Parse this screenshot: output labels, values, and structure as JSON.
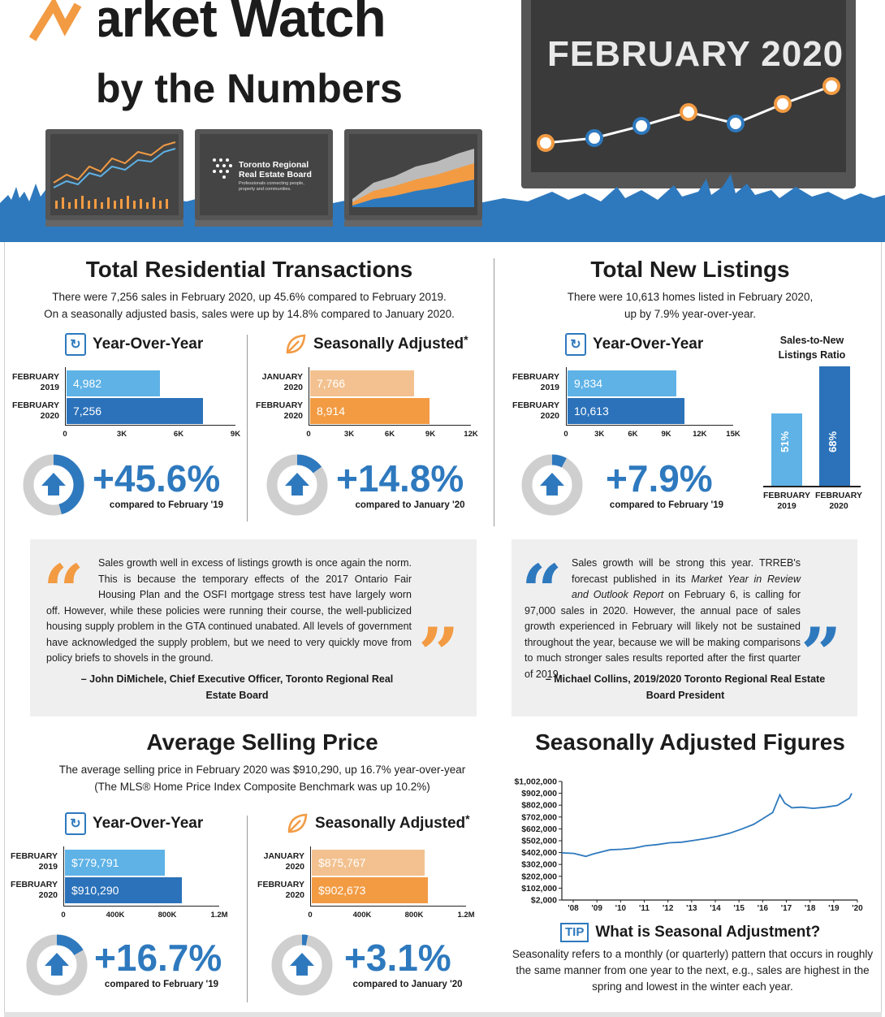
{
  "header": {
    "title_line1": "Market Watch",
    "title_line2": "by the Numbers",
    "period": "FEBRUARY 2020",
    "trreb_logo_line1": "Toronto Regional",
    "trreb_logo_line2": "Real Estate Board",
    "trreb_tagline": "Professionals connecting people, property and communities."
  },
  "transactions": {
    "title": "Total Residential Transactions",
    "summary_line1": "There were 7,256 sales in February 2020, up 45.6% compared to February 2019.",
    "summary_line2": "On a seasonally adjusted basis, sales were up by 14.8% compared to January 2020.",
    "yoy": {
      "heading": "Year-Over-Year",
      "row1_label1": "FEBRUARY",
      "row1_label2": "2019",
      "row1_value": "4,982",
      "row1_num": 4982,
      "row2_label1": "FEBRUARY",
      "row2_label2": "2020",
      "row2_value": "7,256",
      "row2_num": 7256,
      "axis_max": 9000,
      "ticks": [
        "0",
        "3K",
        "6K",
        "9K"
      ],
      "change": "+45.6%",
      "change_fraction": 0.456,
      "compare": "compared to February '19"
    },
    "sa": {
      "heading": "Seasonally Adjusted",
      "asterisk": "*",
      "row1_label1": "JANUARY",
      "row1_label2": "2020",
      "row1_value": "7,766",
      "row1_num": 7766,
      "row2_label1": "FEBRUARY",
      "row2_label2": "2020",
      "row2_value": "8,914",
      "row2_num": 8914,
      "axis_max": 12000,
      "ticks": [
        "0",
        "3K",
        "6K",
        "9K",
        "12K"
      ],
      "change": "+14.8%",
      "change_fraction": 0.148,
      "compare": "compared to January '20"
    },
    "quote": {
      "text": "Sales growth well in excess of listings growth is once again the norm. This is because the temporary effects of the 2017 Ontario Fair Housing Plan and the OSFI mortgage stress test have largely worn off. However, while these policies were running their course, the well-publicized housing supply problem in the GTA continued unabated. All levels of government have acknowledged the supply problem, but we need to very quickly move from policy briefs to shovels in the ground.",
      "author_line1": "– John DiMichele, Chief Executive Officer, Toronto Regional Real",
      "author_line2": "Estate Board"
    }
  },
  "listings": {
    "title": "Total New Listings",
    "summary_line1": "There were 10,613 homes listed in February 2020,",
    "summary_line2": "up by 7.9% year-over-year.",
    "yoy": {
      "heading": "Year-Over-Year",
      "row1_label1": "FEBRUARY",
      "row1_label2": "2019",
      "row1_value": "9,834",
      "row1_num": 9834,
      "row2_label1": "FEBRUARY",
      "row2_label2": "2020",
      "row2_value": "10,613",
      "row2_num": 10613,
      "axis_max": 15000,
      "ticks": [
        "0",
        "3K",
        "6K",
        "9K",
        "12K",
        "15K"
      ],
      "change": "+7.9%",
      "change_fraction": 0.079,
      "compare": "compared to February '19"
    },
    "ratio": {
      "heading_line1": "Sales-to-New",
      "heading_line2": "Listings Ratio",
      "bar1_value": "51%",
      "bar1_num": 51,
      "bar1_label1": "FEBRUARY",
      "bar1_label2": "2019",
      "bar2_value": "68%",
      "bar2_num": 68,
      "bar2_label1": "FEBRUARY",
      "bar2_label2": "2020"
    },
    "quote": {
      "text_before": "Sales growth will be strong this year. TRREB's forecast published in its ",
      "text_italic": "Market Year in Review and Outlook Report",
      "text_after": " on February 6, is calling for 97,000 sales in 2020. However, the annual pace of sales growth experienced in February will likely not be sustained throughout the year, because we will be making comparisons to much stronger sales results reported after the first quarter of 2019.",
      "author_line1": "– Michael Collins, 2019/2020 Toronto Regional Real Estate",
      "author_line2": "Board President"
    }
  },
  "price": {
    "title": "Average Selling Price",
    "summary_line1": "The average selling price in February 2020 was $910,290, up 16.7% year-over-year",
    "summary_line2": "(The MLS® Home Price Index Composite Benchmark was up 10.2%)",
    "yoy": {
      "heading": "Year-Over-Year",
      "row1_label1": "FEBRUARY",
      "row1_label2": "2019",
      "row1_value": "$779,791",
      "row1_num": 779791,
      "row2_label1": "FEBRUARY",
      "row2_label2": "2020",
      "row2_value": "$910,290",
      "row2_num": 910290,
      "axis_max": 1200000,
      "ticks": [
        "0",
        "400K",
        "800K",
        "1.2M"
      ],
      "change": "+16.7%",
      "change_fraction": 0.167,
      "compare": "compared to February '19"
    },
    "sa": {
      "heading": "Seasonally Adjusted",
      "asterisk": "*",
      "row1_label1": "JANUARY",
      "row1_label2": "2020",
      "row1_value": "$875,767",
      "row1_num": 875767,
      "row2_label1": "FEBRUARY",
      "row2_label2": "2020",
      "row2_value": "$902,673",
      "row2_num": 902673,
      "axis_max": 1200000,
      "ticks": [
        "0",
        "400K",
        "800K",
        "1.2M"
      ],
      "change": "+3.1%",
      "change_fraction": 0.031,
      "compare": "compared to January '20"
    }
  },
  "sa_figures": {
    "title": "Seasonally Adjusted Figures",
    "tip_badge": "TIP",
    "tip_heading": "What is Seasonal Adjustment?",
    "tip_text": "Seasonality refers to a monthly (or quarterly) pattern that occurs in roughly the same manner from one year to the next, e.g., sales are highest in the spring and lowest in the winter each year."
  },
  "chart_data": {
    "type": "line",
    "title": "",
    "xlabel": "",
    "ylabel": "",
    "x_tick_labels": [
      "'08",
      "'09",
      "'10",
      "'11",
      "'12",
      "'13",
      "'14",
      "'15",
      "'16",
      "'17",
      "'18",
      "'19",
      "'20"
    ],
    "y_tick_labels": [
      "$1,002,000",
      "$902,000",
      "$802,000",
      "$702,000",
      "$602,000",
      "$502,000",
      "$402,000",
      "$302,000",
      "$202,000",
      "$102,000",
      "$2,000"
    ],
    "ylim": [
      2000,
      1002000
    ],
    "xlim": [
      2008,
      2020.2
    ],
    "grid": false,
    "series": [
      {
        "x": [
          2008.0,
          2008.5,
          2009.0,
          2009.3,
          2009.7,
          2010.0,
          2010.5,
          2011.0,
          2011.5,
          2012.0,
          2012.5,
          2013.0,
          2013.5,
          2014.0,
          2014.5,
          2015.0,
          2015.5,
          2016.0,
          2016.4,
          2016.8,
          2017.1,
          2017.3,
          2017.6,
          2018.0,
          2018.5,
          2019.0,
          2019.5,
          2020.0,
          2020.1
        ],
        "values": [
          400000,
          395000,
          370000,
          390000,
          410000,
          425000,
          430000,
          440000,
          460000,
          470000,
          485000,
          490000,
          505000,
          520000,
          540000,
          565000,
          600000,
          640000,
          690000,
          740000,
          890000,
          820000,
          780000,
          785000,
          775000,
          785000,
          800000,
          860000,
          902000
        ],
        "color": "#2e79be"
      }
    ]
  },
  "colors": {
    "light_blue": "#5eb2e6",
    "dark_blue": "#2b72ba",
    "light_orange": "#f3c18f",
    "dark_orange": "#f29b43",
    "accent_blue": "#2e79be"
  }
}
